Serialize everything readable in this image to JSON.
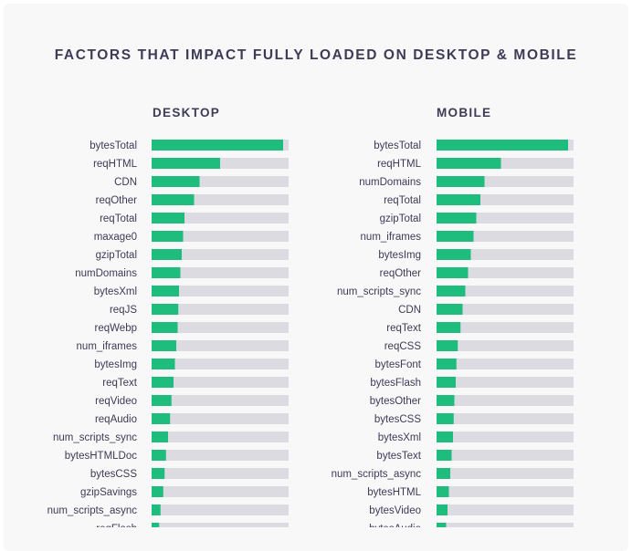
{
  "title": "FACTORS THAT IMPACT FULLY LOADED ON DESKTOP & MOBILE",
  "colors": {
    "bar": "#1ebd7e",
    "track": "#dcdbe1",
    "text": "#3d3b55"
  },
  "chart_data": [
    {
      "type": "bar",
      "orientation": "horizontal",
      "title": "DESKTOP",
      "xlim": [
        0,
        1
      ],
      "categories": [
        "bytesTotal",
        "reqHTML",
        "CDN",
        "reqOther",
        "reqTotal",
        "maxage0",
        "gzipTotal",
        "numDomains",
        "bytesXml",
        "reqJS",
        "reqWebp",
        "num_iframes",
        "bytesImg",
        "reqText",
        "reqVideo",
        "reqAudio",
        "num_scripts_sync",
        "bytesHTMLDoc",
        "bytesCSS",
        "gzipSavings",
        "num_scripts_async",
        "reqFlash"
      ],
      "values": [
        0.96,
        0.5,
        0.35,
        0.31,
        0.24,
        0.23,
        0.22,
        0.21,
        0.2,
        0.195,
        0.19,
        0.18,
        0.17,
        0.16,
        0.145,
        0.135,
        0.12,
        0.105,
        0.095,
        0.085,
        0.065,
        0.055
      ]
    },
    {
      "type": "bar",
      "orientation": "horizontal",
      "title": "MOBILE",
      "xlim": [
        0,
        1
      ],
      "categories": [
        "bytesTotal",
        "reqHTML",
        "numDomains",
        "reqTotal",
        "gzipTotal",
        "num_iframes",
        "bytesImg",
        "reqOther",
        "num_scripts_sync",
        "CDN",
        "reqText",
        "reqCSS",
        "bytesFont",
        "bytesFlash",
        "bytesOther",
        "bytesCSS",
        "bytesXml",
        "bytesText",
        "num_scripts_async",
        "bytesHTML",
        "bytesVideo",
        "bytesAudio"
      ],
      "values": [
        0.96,
        0.47,
        0.35,
        0.32,
        0.29,
        0.27,
        0.25,
        0.23,
        0.21,
        0.19,
        0.175,
        0.155,
        0.145,
        0.14,
        0.13,
        0.125,
        0.12,
        0.11,
        0.1,
        0.09,
        0.08,
        0.07
      ]
    }
  ]
}
